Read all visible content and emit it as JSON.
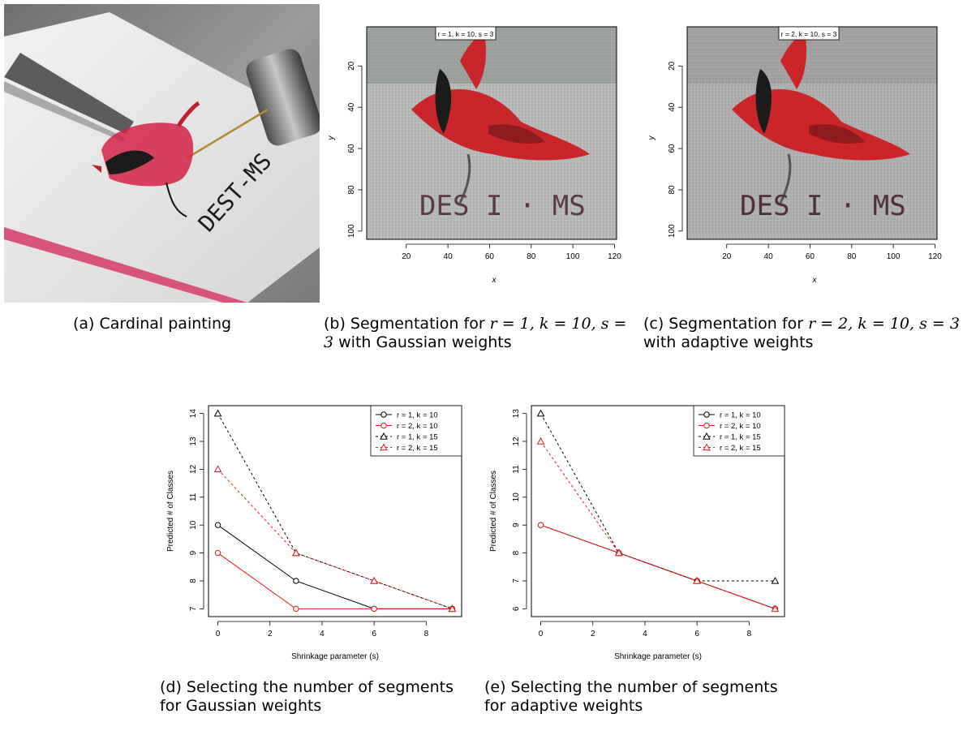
{
  "figures": {
    "a": {
      "caption": "(a) Cardinal painting",
      "icon": "painted-cardinal-photo",
      "photo_text": "DEST-MS"
    },
    "b": {
      "caption_pre": "(b) Segmentation for ",
      "caption_math": "r = 1, k = 10, s = 3",
      "caption_post": " with Gaussian weights",
      "label": "r = 1, k = 10, s = 3",
      "xlabel": "x",
      "ylabel": "y",
      "xticks": [
        "20",
        "40",
        "60",
        "80",
        "100",
        "120"
      ],
      "yticks": [
        "20",
        "40",
        "60",
        "80",
        "100"
      ],
      "image_text": "DES I · MS",
      "colors": {
        "bg": "#aeb1ae",
        "grid": "#d6d6d6",
        "red": "#c8262a",
        "dark": "#1b1b1b",
        "text": "#5a3a46"
      }
    },
    "c": {
      "caption_pre": "(c) Segmentation for ",
      "caption_math": "r = 2, k = 10, s = 3",
      "caption_post": " with adaptive weights",
      "label": "r = 2, k = 10, s = 3",
      "xlabel": "x",
      "ylabel": "y",
      "xticks": [
        "20",
        "40",
        "60",
        "80",
        "100",
        "120"
      ],
      "yticks": [
        "20",
        "40",
        "60",
        "80",
        "100"
      ],
      "image_text": "DES I · MS",
      "colors": {
        "bg": "#a9a9a9",
        "grid": "#c9c9c9",
        "red": "#cc2528",
        "dark": "#1b1b1b",
        "text": "#4d2f3d"
      }
    },
    "d": {
      "caption_line1": "(d) Selecting the number of segments",
      "caption_line2": "for Gaussian weights"
    },
    "e": {
      "caption_line1": "(e) Selecting the number of segments",
      "caption_line2": "for adaptive weights"
    }
  },
  "chart_data": [
    {
      "type": "line",
      "xlabel": "Shrinkage parameter (s)",
      "ylabel": "Predicted # of Classes",
      "xlim": [
        0,
        9
      ],
      "ylim": [
        7,
        14
      ],
      "xticks": [
        0,
        2,
        4,
        6,
        8
      ],
      "yticks": [
        7,
        8,
        9,
        10,
        11,
        12,
        13,
        14
      ],
      "legend_position": "top-right",
      "x": [
        0,
        3,
        6,
        9
      ],
      "series": [
        {
          "name": "r = 1, k = 10",
          "values": [
            10,
            8,
            7,
            7
          ],
          "color": "#000000",
          "marker": "circle",
          "dash": "solid"
        },
        {
          "name": "r = 2, k = 10",
          "values": [
            9,
            7,
            7,
            7
          ],
          "color": "#e41a1c",
          "marker": "circle",
          "dash": "solid"
        },
        {
          "name": "r = 1, k = 15",
          "values": [
            14,
            9,
            8,
            7
          ],
          "color": "#000000",
          "marker": "triangle",
          "dash": "dashed"
        },
        {
          "name": "r = 2, k = 15",
          "values": [
            12,
            9,
            8,
            7
          ],
          "color": "#e41a1c",
          "marker": "triangle",
          "dash": "dashed"
        }
      ]
    },
    {
      "type": "line",
      "xlabel": "Shrinkage parameter (s)",
      "ylabel": "Predicted # of Classes",
      "xlim": [
        0,
        9
      ],
      "ylim": [
        6,
        13
      ],
      "xticks": [
        0,
        2,
        4,
        6,
        8
      ],
      "yticks": [
        6,
        7,
        8,
        9,
        10,
        11,
        12,
        13
      ],
      "legend_position": "top-right",
      "x": [
        0,
        3,
        6,
        9
      ],
      "series": [
        {
          "name": "r = 1, k = 10",
          "values": [
            9,
            8,
            7,
            6
          ],
          "color": "#000000",
          "marker": "circle",
          "dash": "solid"
        },
        {
          "name": "r = 2, k = 10",
          "values": [
            9,
            8,
            7,
            6
          ],
          "color": "#e41a1c",
          "marker": "circle",
          "dash": "solid"
        },
        {
          "name": "r = 1, k = 15",
          "values": [
            13,
            8,
            7,
            7
          ],
          "color": "#000000",
          "marker": "triangle",
          "dash": "dashed"
        },
        {
          "name": "r = 2, k = 15",
          "values": [
            12,
            8,
            7,
            6
          ],
          "color": "#e41a1c",
          "marker": "triangle",
          "dash": "dashed"
        }
      ]
    }
  ]
}
